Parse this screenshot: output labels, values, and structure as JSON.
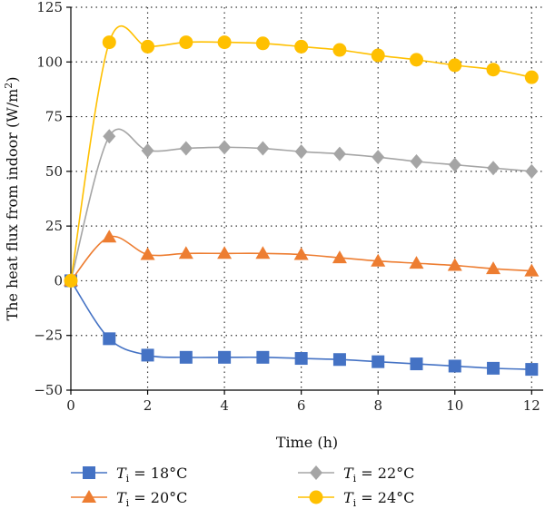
{
  "chart_data": {
    "type": "line",
    "xlabel": "Time (h)",
    "ylabel": "The heat flux from indoor (W/m²)",
    "xlim": [
      0,
      12.3
    ],
    "ylim": [
      -50,
      125
    ],
    "xticks": [
      0,
      2,
      4,
      6,
      8,
      10,
      12
    ],
    "yticks": [
      -50,
      -25,
      0,
      25,
      50,
      75,
      100,
      125
    ],
    "grid": "dotted",
    "legend_placement": "bottom",
    "x": [
      0,
      1,
      2,
      3,
      4,
      5,
      6,
      7,
      8,
      9,
      10,
      11,
      12
    ],
    "series": [
      {
        "label_var": "T",
        "label_sub": "i",
        "label_rest": " = 18°C",
        "color": "#4472c4",
        "marker": "square",
        "values": [
          0,
          -26.5,
          -34,
          -35,
          -35,
          -35,
          -35.5,
          -36,
          -37,
          -38,
          -39,
          -40,
          -40.5
        ]
      },
      {
        "label_var": "T",
        "label_sub": "i",
        "label_rest": " = 20°C",
        "color": "#ed7d31",
        "marker": "triangle",
        "values": [
          0,
          20,
          12,
          12.5,
          12.5,
          12.5,
          12,
          10.5,
          9,
          8,
          7,
          5.5,
          4.5
        ]
      },
      {
        "label_var": "T",
        "label_sub": "i",
        "label_rest": " = 22°C",
        "color": "#a5a5a5",
        "marker": "diamond",
        "values": [
          0,
          66,
          59.5,
          60.5,
          61,
          60.5,
          59,
          58,
          56.5,
          54.5,
          53,
          51.5,
          50
        ]
      },
      {
        "label_var": "T",
        "label_sub": "i",
        "label_rest": " = 24°C",
        "color": "#ffc000",
        "marker": "circle",
        "values": [
          0,
          109,
          107,
          109,
          109,
          108.5,
          107,
          105.5,
          103,
          101,
          98.5,
          96.5,
          93
        ]
      }
    ]
  }
}
